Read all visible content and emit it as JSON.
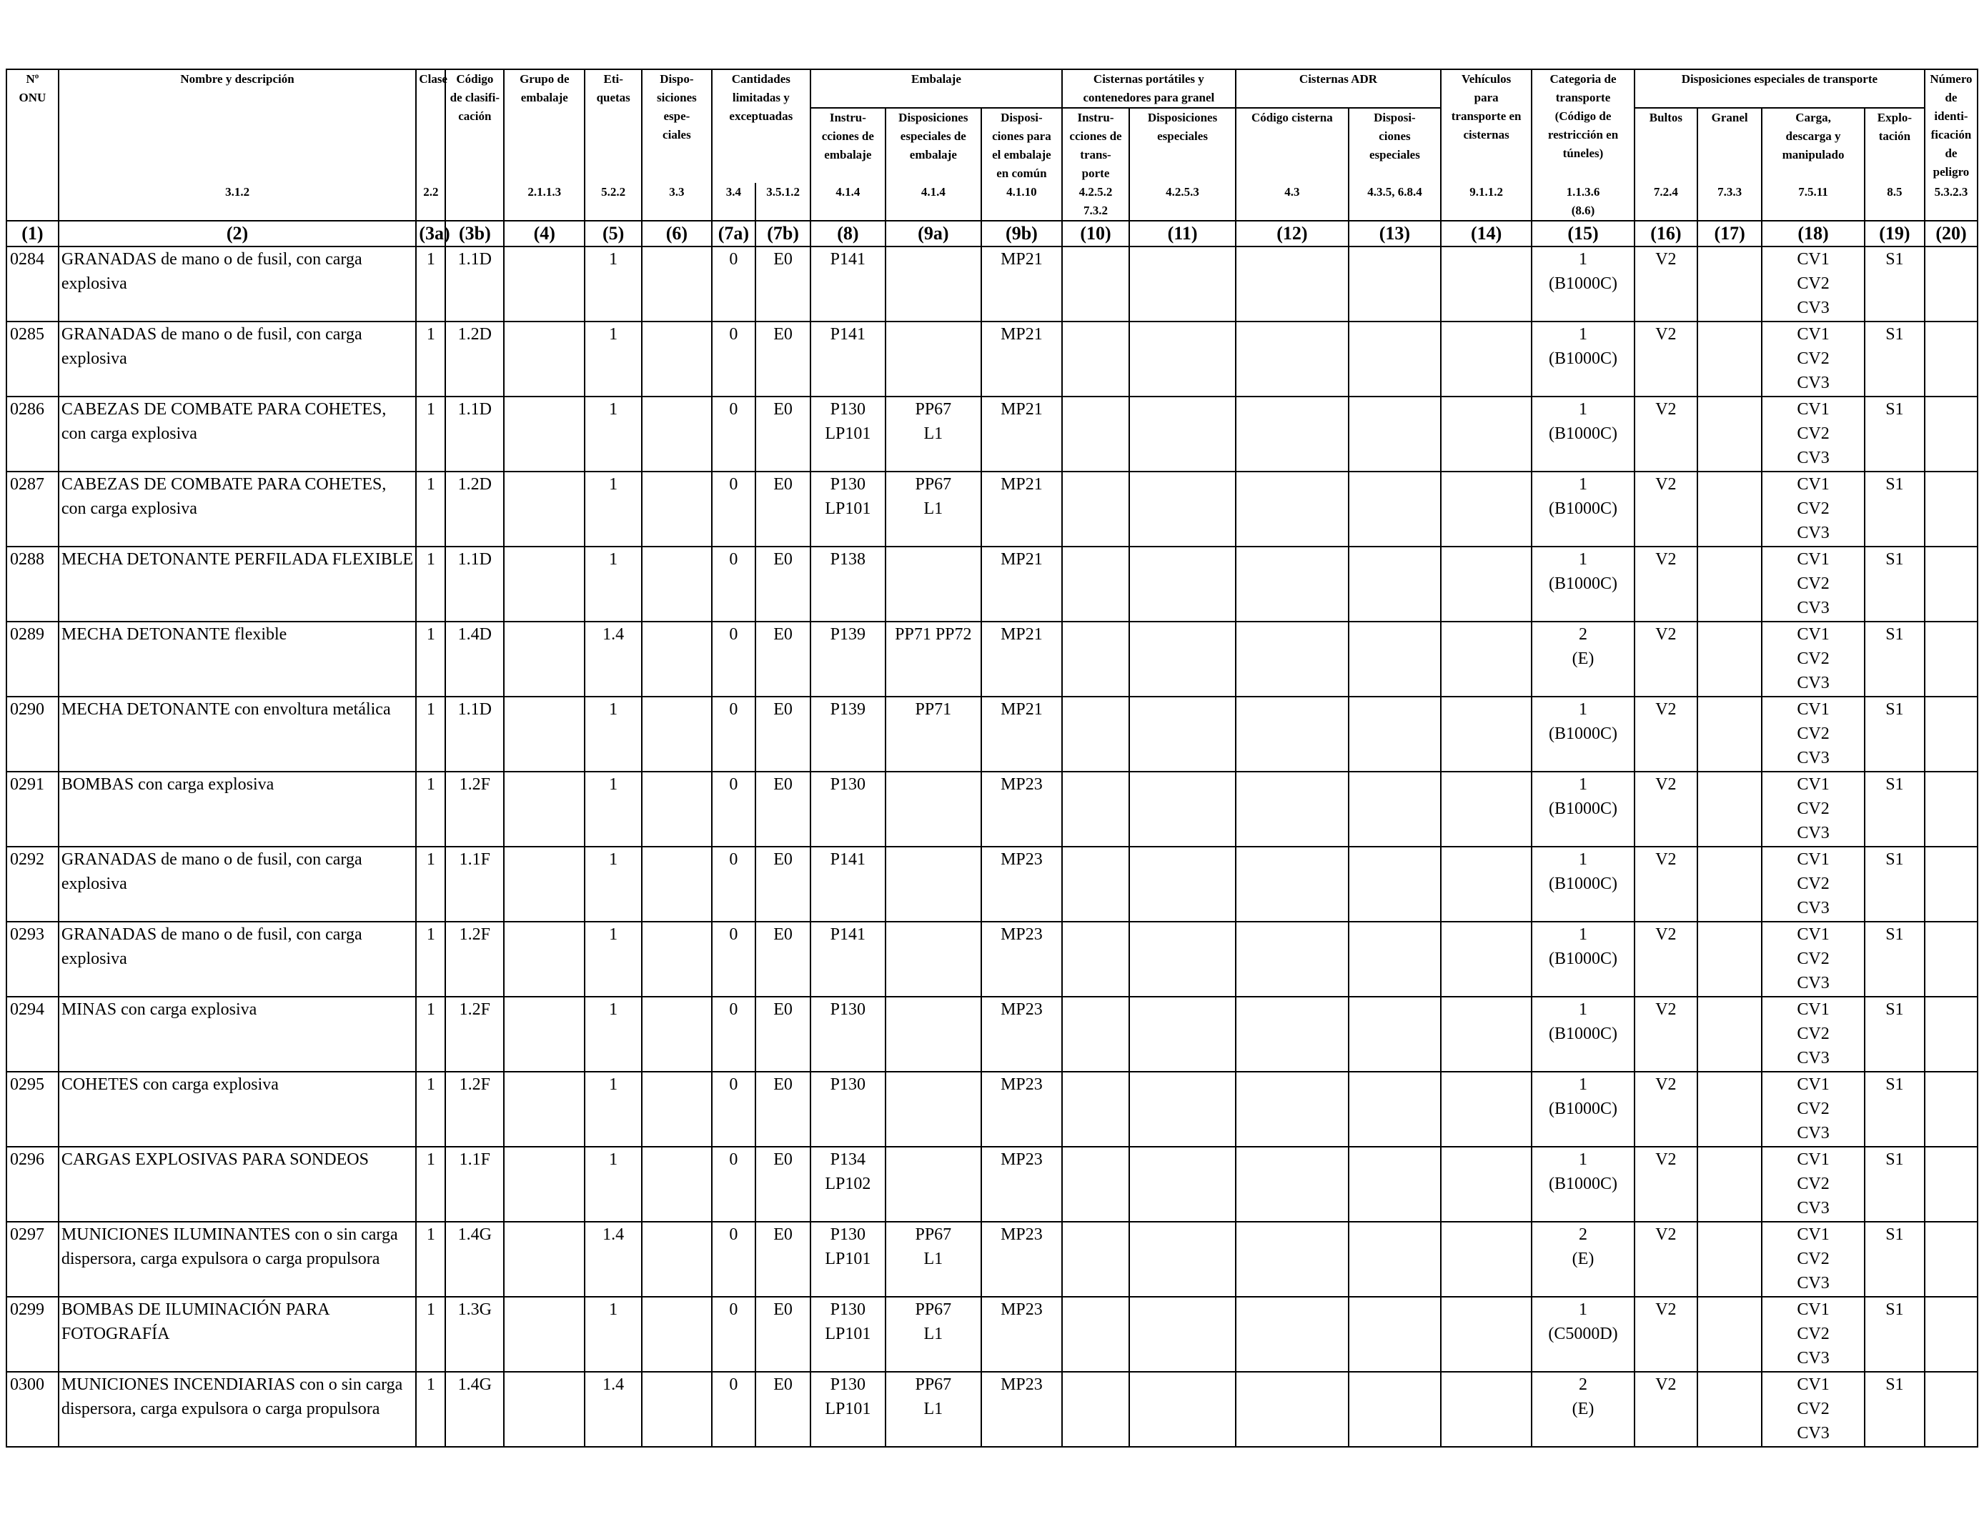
{
  "headers": {
    "onu": [
      "Nº",
      "ONU"
    ],
    "name": "Nombre y descripción",
    "name_sec": "3.1.2",
    "clase": "Clase",
    "clase_sec": "2.2",
    "codigo": [
      "Código",
      "de clasifi-",
      "cación"
    ],
    "grupo": [
      "Grupo de",
      "embalaje"
    ],
    "grupo_sec": "2.1.1.3",
    "etiquetas": [
      "Eti-",
      "quetas"
    ],
    "etiquetas_sec": "5.2.2",
    "disp_esp": [
      "Dispo-",
      "siciones",
      "espe-",
      "ciales"
    ],
    "disp_esp_sec": "3.3",
    "cantidades": [
      "Cantidades",
      "limitadas y",
      "exceptuadas"
    ],
    "cantidades_sec_a": "3.4",
    "cantidades_sec_b": "3.5.1.2",
    "embalaje": "Embalaje",
    "emb_instr": [
      "Instru-",
      "cciones de",
      "embalaje"
    ],
    "emb_instr_sec": "4.1.4",
    "emb_disp": [
      "Disposiciones",
      "especiales de",
      "embalaje"
    ],
    "emb_disp_sec": "4.1.4",
    "emb_comun": [
      "Disposi-",
      "ciones para",
      "el embalaje",
      "en común"
    ],
    "emb_comun_sec": "4.1.10",
    "cist_port": [
      "Cisternas portátiles y",
      "contenedores para granel"
    ],
    "cp_instr": [
      "Instru-",
      "cciones de",
      "trans-",
      "porte"
    ],
    "cp_instr_sec": [
      "4.2.5.2",
      "7.3.2"
    ],
    "cp_disp": [
      "Disposiciones",
      "especiales"
    ],
    "cp_disp_sec": "4.2.5.3",
    "cist_adr": "Cisternas ADR",
    "ca_codigo": "Código cisterna",
    "ca_codigo_sec": "4.3",
    "ca_disp": [
      "Disposi-",
      "ciones",
      "especiales"
    ],
    "ca_disp_sec": "4.3.5, 6.8.4",
    "vehiculos": [
      "Vehículos",
      "para",
      "transporte en",
      "cisternas"
    ],
    "vehiculos_sec": "9.1.1.2",
    "categoria": [
      "Categoria de",
      "transporte",
      "(Código de",
      "restricción en",
      "túneles)"
    ],
    "categoria_sec": [
      "1.1.3.6",
      "(8.6)"
    ],
    "disp_transp": "Disposiciones especiales de transporte",
    "dt_bultos": "Bultos",
    "dt_bultos_sec": "7.2.4",
    "dt_granel": "Granel",
    "dt_granel_sec": "7.3.3",
    "dt_carga": [
      "Carga,",
      "descarga y",
      "manipulado"
    ],
    "dt_carga_sec": "7.5.11",
    "dt_explo": [
      "Explo-",
      "tación"
    ],
    "dt_explo_sec": "8.5",
    "numero": [
      "Número",
      "de identi-",
      "ficación",
      "de peligro"
    ],
    "numero_sec": "5.3.2.3"
  },
  "col_numbers": [
    "(1)",
    "(2)",
    "(3a)",
    "(3b)",
    "(4)",
    "(5)",
    "(6)",
    "(7a)",
    "(7b)",
    "(8)",
    "(9a)",
    "(9b)",
    "(10)",
    "(11)",
    "(12)",
    "(13)",
    "(14)",
    "(15)",
    "(16)",
    "(17)",
    "(18)",
    "(19)",
    "(20)"
  ],
  "rows": [
    {
      "onu": "0284",
      "name": "GRANADAS de mano o de fusil, con carga explosiva",
      "clase": "1",
      "codigo": "1.1D",
      "grupo": "",
      "etiquetas": "1",
      "disp": "",
      "lq": "0",
      "eq": "E0",
      "instr": [
        "P141"
      ],
      "emb_disp": [],
      "comun": "MP21",
      "cat": [
        "1",
        "(B1000C)"
      ],
      "bultos": "V2",
      "granel": "",
      "carga": [
        "CV1",
        "CV2",
        "CV3"
      ],
      "explo": "S1",
      "numero": ""
    },
    {
      "onu": "0285",
      "name": "GRANADAS de mano o de fusil, con carga explosiva",
      "clase": "1",
      "codigo": "1.2D",
      "grupo": "",
      "etiquetas": "1",
      "disp": "",
      "lq": "0",
      "eq": "E0",
      "instr": [
        "P141"
      ],
      "emb_disp": [],
      "comun": "MP21",
      "cat": [
        "1",
        "(B1000C)"
      ],
      "bultos": "V2",
      "granel": "",
      "carga": [
        "CV1",
        "CV2",
        "CV3"
      ],
      "explo": "S1",
      "numero": ""
    },
    {
      "onu": "0286",
      "name": "CABEZAS DE COMBATE PARA COHETES, con carga explosiva",
      "clase": "1",
      "codigo": "1.1D",
      "grupo": "",
      "etiquetas": "1",
      "disp": "",
      "lq": "0",
      "eq": "E0",
      "instr": [
        "P130",
        "LP101"
      ],
      "emb_disp": [
        "PP67",
        "L1"
      ],
      "comun": "MP21",
      "cat": [
        "1",
        "(B1000C)"
      ],
      "bultos": "V2",
      "granel": "",
      "carga": [
        "CV1",
        "CV2",
        "CV3"
      ],
      "explo": "S1",
      "numero": ""
    },
    {
      "onu": "0287",
      "name": "CABEZAS DE COMBATE PARA COHETES, con carga explosiva",
      "clase": "1",
      "codigo": "1.2D",
      "grupo": "",
      "etiquetas": "1",
      "disp": "",
      "lq": "0",
      "eq": "E0",
      "instr": [
        "P130",
        "LP101"
      ],
      "emb_disp": [
        "PP67",
        "L1"
      ],
      "comun": "MP21",
      "cat": [
        "1",
        "(B1000C)"
      ],
      "bultos": "V2",
      "granel": "",
      "carga": [
        "CV1",
        "CV2",
        "CV3"
      ],
      "explo": "S1",
      "numero": ""
    },
    {
      "onu": "0288",
      "name": "MECHA DETONANTE PERFILADA FLEXIBLE",
      "clase": "1",
      "codigo": "1.1D",
      "grupo": "",
      "etiquetas": "1",
      "disp": "",
      "lq": "0",
      "eq": "E0",
      "instr": [
        "P138"
      ],
      "emb_disp": [],
      "comun": "MP21",
      "cat": [
        "1",
        "(B1000C)"
      ],
      "bultos": "V2",
      "granel": "",
      "carga": [
        "CV1",
        "CV2",
        "CV3"
      ],
      "explo": "S1",
      "numero": ""
    },
    {
      "onu": "0289",
      "name": "MECHA DETONANTE flexible",
      "clase": "1",
      "codigo": "1.4D",
      "grupo": "",
      "etiquetas": "1.4",
      "disp": "",
      "lq": "0",
      "eq": "E0",
      "instr": [
        "P139"
      ],
      "emb_disp": [
        "PP71 PP72"
      ],
      "comun": "MP21",
      "cat": [
        "2",
        "(E)"
      ],
      "bultos": "V2",
      "granel": "",
      "carga": [
        "CV1",
        "CV2",
        "CV3"
      ],
      "explo": "S1",
      "numero": ""
    },
    {
      "onu": "0290",
      "name": "MECHA DETONANTE con envoltura metálica",
      "clase": "1",
      "codigo": "1.1D",
      "grupo": "",
      "etiquetas": "1",
      "disp": "",
      "lq": "0",
      "eq": "E0",
      "instr": [
        "P139"
      ],
      "emb_disp": [
        "PP71"
      ],
      "comun": "MP21",
      "cat": [
        "1",
        "(B1000C)"
      ],
      "bultos": "V2",
      "granel": "",
      "carga": [
        "CV1",
        "CV2",
        "CV3"
      ],
      "explo": "S1",
      "numero": ""
    },
    {
      "onu": "0291",
      "name": "BOMBAS con carga explosiva",
      "clase": "1",
      "codigo": "1.2F",
      "grupo": "",
      "etiquetas": "1",
      "disp": "",
      "lq": "0",
      "eq": "E0",
      "instr": [
        "P130"
      ],
      "emb_disp": [],
      "comun": "MP23",
      "cat": [
        "1",
        "(B1000C)"
      ],
      "bultos": "V2",
      "granel": "",
      "carga": [
        "CV1",
        "CV2",
        "CV3"
      ],
      "explo": "S1",
      "numero": ""
    },
    {
      "onu": "0292",
      "name": "GRANADAS de mano o de fusil, con carga explosiva",
      "clase": "1",
      "codigo": "1.1F",
      "grupo": "",
      "etiquetas": "1",
      "disp": "",
      "lq": "0",
      "eq": "E0",
      "instr": [
        "P141"
      ],
      "emb_disp": [],
      "comun": "MP23",
      "cat": [
        "1",
        "(B1000C)"
      ],
      "bultos": "V2",
      "granel": "",
      "carga": [
        "CV1",
        "CV2",
        "CV3"
      ],
      "explo": "S1",
      "numero": ""
    },
    {
      "onu": "0293",
      "name": "GRANADAS de mano o de fusil, con carga explosiva",
      "clase": "1",
      "codigo": "1.2F",
      "grupo": "",
      "etiquetas": "1",
      "disp": "",
      "lq": "0",
      "eq": "E0",
      "instr": [
        "P141"
      ],
      "emb_disp": [],
      "comun": "MP23",
      "cat": [
        "1",
        "(B1000C)"
      ],
      "bultos": "V2",
      "granel": "",
      "carga": [
        "CV1",
        "CV2",
        "CV3"
      ],
      "explo": "S1",
      "numero": ""
    },
    {
      "onu": "0294",
      "name": "MINAS con carga explosiva",
      "clase": "1",
      "codigo": "1.2F",
      "grupo": "",
      "etiquetas": "1",
      "disp": "",
      "lq": "0",
      "eq": "E0",
      "instr": [
        "P130"
      ],
      "emb_disp": [],
      "comun": "MP23",
      "cat": [
        "1",
        "(B1000C)"
      ],
      "bultos": "V2",
      "granel": "",
      "carga": [
        "CV1",
        "CV2",
        "CV3"
      ],
      "explo": "S1",
      "numero": ""
    },
    {
      "onu": "0295",
      "name": "COHETES con carga explosiva",
      "clase": "1",
      "codigo": "1.2F",
      "grupo": "",
      "etiquetas": "1",
      "disp": "",
      "lq": "0",
      "eq": "E0",
      "instr": [
        "P130"
      ],
      "emb_disp": [],
      "comun": "MP23",
      "cat": [
        "1",
        "(B1000C)"
      ],
      "bultos": "V2",
      "granel": "",
      "carga": [
        "CV1",
        "CV2",
        "CV3"
      ],
      "explo": "S1",
      "numero": ""
    },
    {
      "onu": "0296",
      "name": "CARGAS EXPLOSIVAS PARA SONDEOS",
      "clase": "1",
      "codigo": "1.1F",
      "grupo": "",
      "etiquetas": "1",
      "disp": "",
      "lq": "0",
      "eq": "E0",
      "instr": [
        "P134",
        "LP102"
      ],
      "emb_disp": [],
      "comun": "MP23",
      "cat": [
        "1",
        "(B1000C)"
      ],
      "bultos": "V2",
      "granel": "",
      "carga": [
        "CV1",
        "CV2",
        "CV3"
      ],
      "explo": "S1",
      "numero": ""
    },
    {
      "onu": "0297",
      "name": "MUNICIONES ILUMINANTES con o sin carga dispersora, carga expulsora o carga propulsora",
      "clase": "1",
      "codigo": "1.4G",
      "grupo": "",
      "etiquetas": "1.4",
      "disp": "",
      "lq": "0",
      "eq": "E0",
      "instr": [
        "P130",
        "LP101"
      ],
      "emb_disp": [
        "PP67",
        "L1"
      ],
      "comun": "MP23",
      "cat": [
        "2",
        "(E)"
      ],
      "bultos": "V2",
      "granel": "",
      "carga": [
        "CV1",
        "CV2",
        "CV3"
      ],
      "explo": "S1",
      "numero": ""
    },
    {
      "onu": "0299",
      "name": "BOMBAS DE ILUMINACIÓN PARA FOTOGRAFÍA",
      "clase": "1",
      "codigo": "1.3G",
      "grupo": "",
      "etiquetas": "1",
      "disp": "",
      "lq": "0",
      "eq": "E0",
      "instr": [
        "P130",
        "LP101"
      ],
      "emb_disp": [
        "PP67",
        "L1"
      ],
      "comun": "MP23",
      "cat": [
        "1",
        "(C5000D)"
      ],
      "bultos": "V2",
      "granel": "",
      "carga": [
        "CV1",
        "CV2",
        "CV3"
      ],
      "explo": "S1",
      "numero": ""
    },
    {
      "onu": "0300",
      "name": "MUNICIONES INCENDIARIAS con o sin carga dispersora, carga expulsora o carga propulsora",
      "clase": "1",
      "codigo": "1.4G",
      "grupo": "",
      "etiquetas": "1.4",
      "disp": "",
      "lq": "0",
      "eq": "E0",
      "instr": [
        "P130",
        "LP101"
      ],
      "emb_disp": [
        "PP67",
        "L1"
      ],
      "comun": "MP23",
      "cat": [
        "2",
        "(E)"
      ],
      "bultos": "V2",
      "granel": "",
      "carga": [
        "CV1",
        "CV2",
        "CV3"
      ],
      "explo": "S1",
      "numero": ""
    }
  ]
}
